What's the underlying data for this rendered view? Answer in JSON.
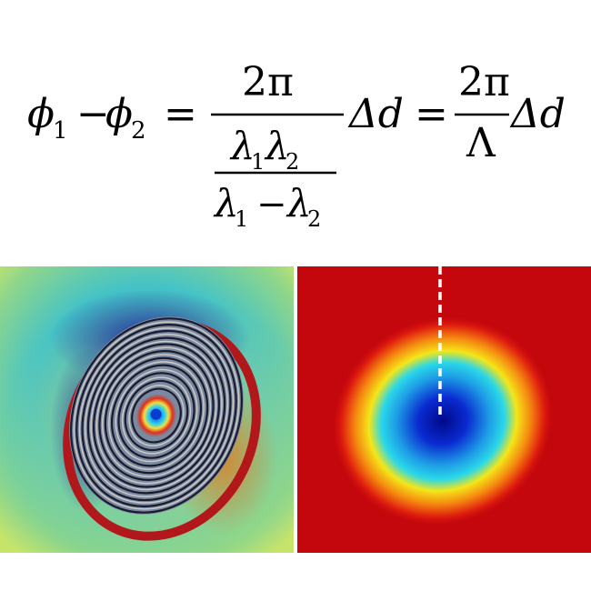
{
  "equation": {
    "phi": "ϕ",
    "sub1": "1",
    "sub2": "2",
    "minus": "−",
    "equals": "=",
    "two_pi": "2π",
    "lambda": "λ",
    "delta_d": "Δd",
    "big_lambda": "Λ"
  },
  "panels": {
    "left": {
      "icon": "fringe-interferogram-image",
      "colors": [
        "#1e9ad8",
        "#f6e94a",
        "#b2181b",
        "#16189a"
      ]
    },
    "right": {
      "icon": "phase-map-image",
      "colors": [
        "#c4060d",
        "#f4e619",
        "#1e9ee6",
        "#000a8a"
      ]
    }
  }
}
